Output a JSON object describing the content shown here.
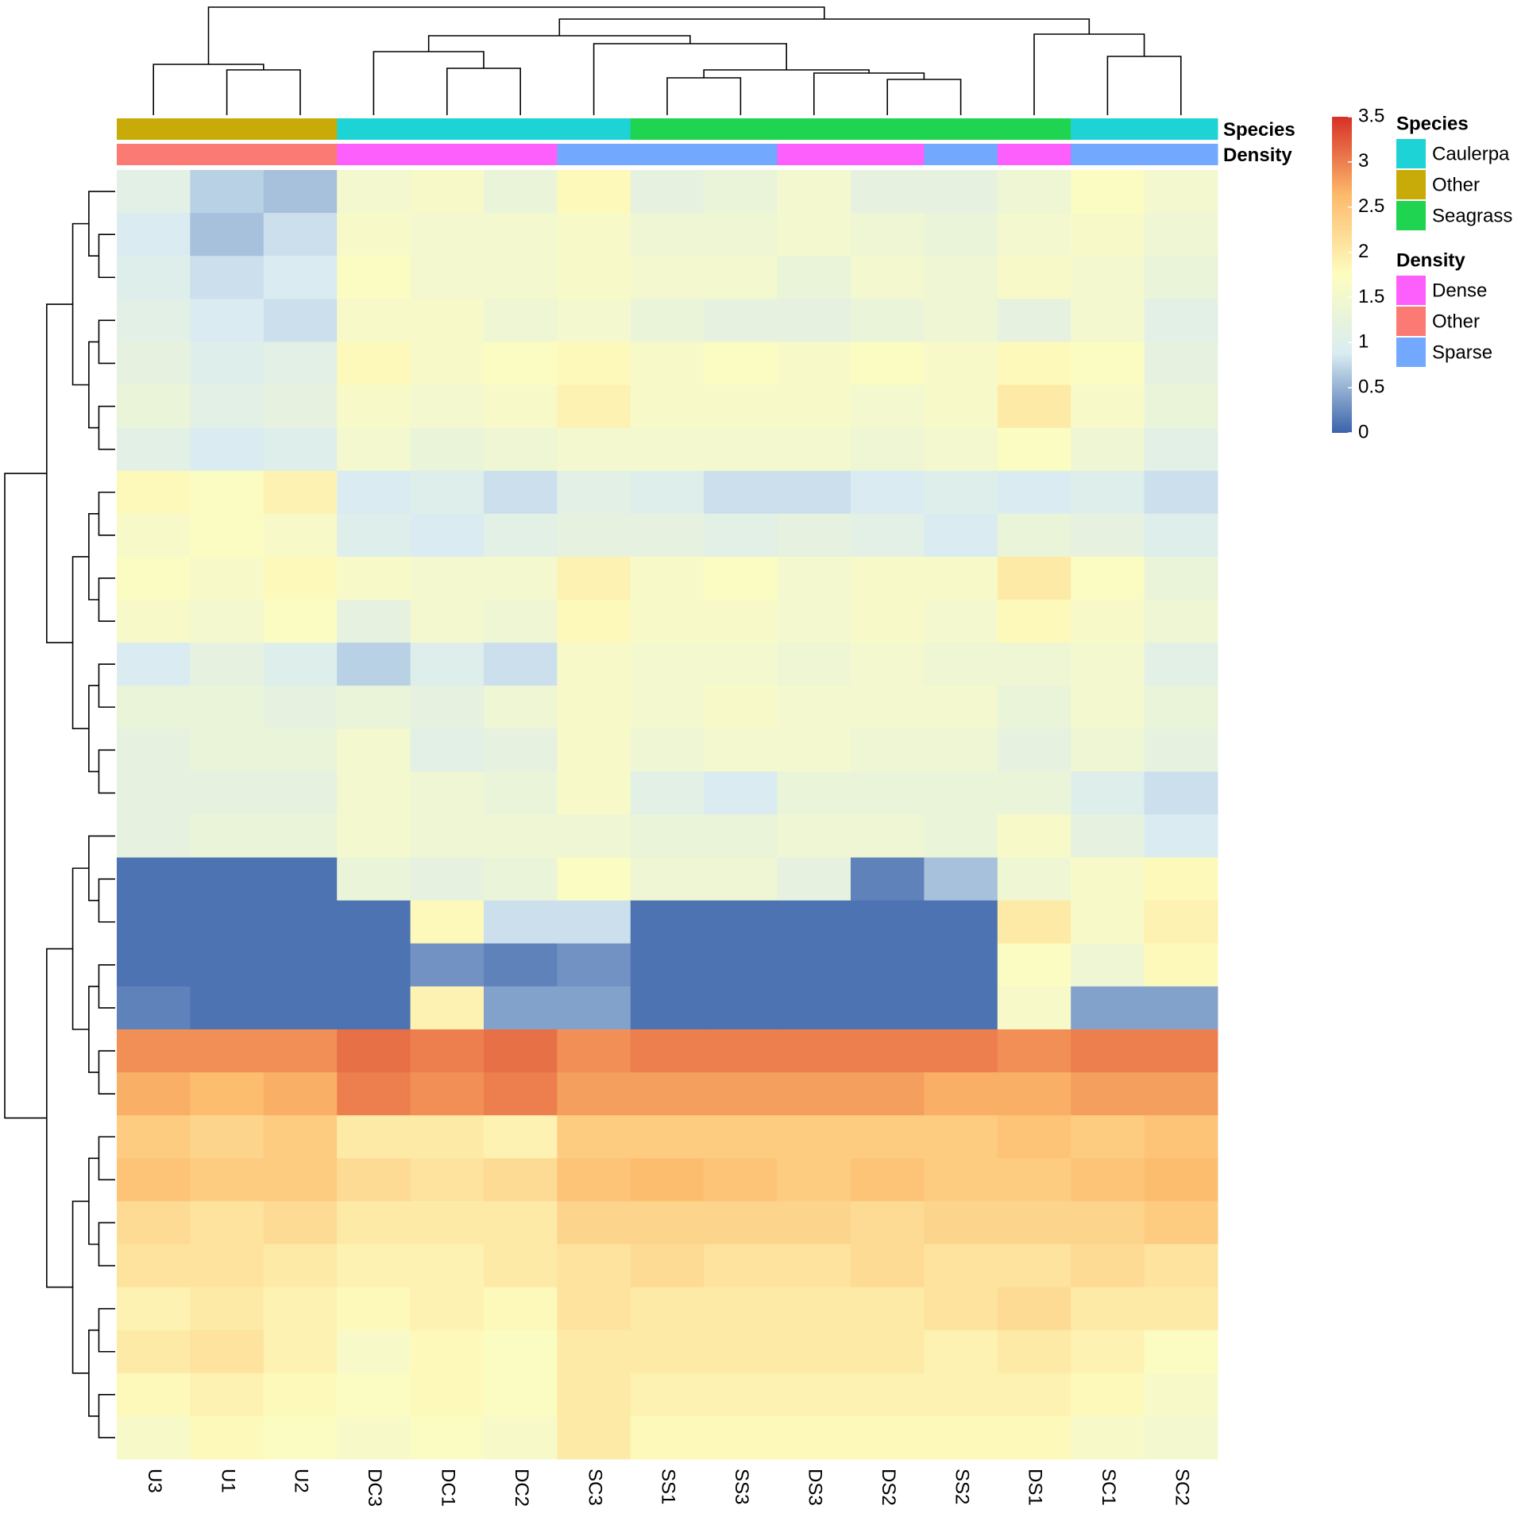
{
  "chart_data": {
    "type": "heatmap",
    "columns": [
      "U3",
      "U1",
      "U2",
      "DC3",
      "DC1",
      "DC2",
      "SC3",
      "SS1",
      "SS3",
      "DS3",
      "DS2",
      "SS2",
      "DS1",
      "SC1",
      "SC2"
    ],
    "annotation_tracks": [
      {
        "name": "Species",
        "values": [
          "Other",
          "Other",
          "Other",
          "Caulerpa",
          "Caulerpa",
          "Caulerpa",
          "Caulerpa",
          "Seagrass",
          "Seagrass",
          "Seagrass",
          "Seagrass",
          "Seagrass",
          "Seagrass",
          "Caulerpa",
          "Caulerpa"
        ],
        "levels": [
          {
            "name": "Caulerpa",
            "color": "#1ed3d6"
          },
          {
            "name": "Other",
            "color": "#c8ab09"
          },
          {
            "name": "Seagrass",
            "color": "#1ed450"
          }
        ]
      },
      {
        "name": "Density",
        "values": [
          "Other",
          "Other",
          "Other",
          "Dense",
          "Dense",
          "Dense",
          "Sparse",
          "Sparse",
          "Sparse",
          "Dense",
          "Dense",
          "Sparse",
          "Dense",
          "Sparse",
          "Sparse"
        ],
        "levels": [
          {
            "name": "Dense",
            "color": "#fd5ffd"
          },
          {
            "name": "Other",
            "color": "#fb7b74"
          },
          {
            "name": "Sparse",
            "color": "#72a8fd"
          }
        ]
      }
    ],
    "zlim": [
      0,
      3.5
    ],
    "zticks": [
      0,
      0.5,
      1,
      1.5,
      2,
      2.5,
      3,
      3.5
    ],
    "colors": [
      "#3b63ab",
      "#d9ecf2",
      "#fdfdbf",
      "#fdbb6c",
      "#d73027"
    ],
    "values": [
      [
        1.1,
        0.7,
        0.6,
        1.5,
        1.6,
        1.3,
        1.8,
        1.2,
        1.3,
        1.5,
        1.2,
        1.2,
        1.4,
        1.7,
        1.5
      ],
      [
        0.9,
        0.6,
        0.8,
        1.6,
        1.5,
        1.5,
        1.6,
        1.4,
        1.4,
        1.5,
        1.4,
        1.3,
        1.5,
        1.6,
        1.4
      ],
      [
        1.0,
        0.8,
        0.9,
        1.7,
        1.5,
        1.5,
        1.6,
        1.5,
        1.5,
        1.3,
        1.5,
        1.4,
        1.6,
        1.5,
        1.3
      ],
      [
        1.1,
        0.9,
        0.8,
        1.6,
        1.6,
        1.4,
        1.5,
        1.3,
        1.2,
        1.2,
        1.3,
        1.4,
        1.2,
        1.5,
        1.1
      ],
      [
        1.2,
        1.0,
        1.1,
        1.8,
        1.6,
        1.7,
        1.8,
        1.6,
        1.7,
        1.6,
        1.7,
        1.6,
        1.8,
        1.7,
        1.2
      ],
      [
        1.3,
        1.1,
        1.2,
        1.6,
        1.5,
        1.6,
        1.9,
        1.6,
        1.6,
        1.6,
        1.5,
        1.6,
        2.0,
        1.6,
        1.3
      ],
      [
        1.1,
        0.9,
        1.0,
        1.5,
        1.3,
        1.4,
        1.5,
        1.5,
        1.5,
        1.5,
        1.4,
        1.5,
        1.7,
        1.4,
        1.1
      ],
      [
        1.8,
        1.7,
        1.9,
        0.9,
        1.0,
        0.8,
        1.1,
        1.0,
        0.8,
        0.8,
        0.9,
        1.0,
        0.9,
        1.0,
        0.8
      ],
      [
        1.6,
        1.7,
        1.6,
        1.0,
        0.9,
        1.1,
        1.2,
        1.2,
        1.1,
        1.2,
        1.1,
        0.9,
        1.3,
        1.2,
        1.0
      ],
      [
        1.7,
        1.6,
        1.8,
        1.6,
        1.5,
        1.5,
        1.9,
        1.6,
        1.7,
        1.5,
        1.6,
        1.6,
        2.0,
        1.7,
        1.3
      ],
      [
        1.6,
        1.5,
        1.7,
        1.2,
        1.5,
        1.4,
        1.8,
        1.6,
        1.6,
        1.5,
        1.6,
        1.5,
        1.8,
        1.6,
        1.4
      ],
      [
        0.9,
        1.2,
        1.0,
        0.7,
        1.0,
        0.8,
        1.6,
        1.5,
        1.5,
        1.4,
        1.5,
        1.4,
        1.4,
        1.5,
        1.1
      ],
      [
        1.3,
        1.3,
        1.2,
        1.3,
        1.2,
        1.4,
        1.6,
        1.5,
        1.6,
        1.5,
        1.5,
        1.5,
        1.3,
        1.5,
        1.3
      ],
      [
        1.2,
        1.3,
        1.3,
        1.5,
        1.1,
        1.2,
        1.6,
        1.4,
        1.5,
        1.5,
        1.4,
        1.4,
        1.2,
        1.4,
        1.2
      ],
      [
        1.2,
        1.2,
        1.2,
        1.5,
        1.4,
        1.3,
        1.6,
        1.1,
        0.9,
        1.3,
        1.3,
        1.3,
        1.3,
        1.0,
        0.8
      ],
      [
        1.2,
        1.3,
        1.3,
        1.5,
        1.4,
        1.4,
        1.4,
        1.3,
        1.3,
        1.4,
        1.4,
        1.3,
        1.6,
        1.2,
        0.9
      ],
      [
        0.1,
        0.1,
        0.1,
        1.3,
        1.2,
        1.3,
        1.7,
        1.4,
        1.4,
        1.2,
        0.2,
        0.6,
        1.4,
        1.6,
        1.8
      ],
      [
        0.1,
        0.1,
        0.1,
        0.1,
        1.8,
        0.8,
        0.8,
        0.1,
        0.1,
        0.1,
        0.1,
        0.1,
        2.0,
        1.6,
        1.9
      ],
      [
        0.1,
        0.1,
        0.1,
        0.1,
        0.3,
        0.2,
        0.3,
        0.1,
        0.1,
        0.1,
        0.1,
        0.1,
        1.7,
        1.4,
        1.8
      ],
      [
        0.2,
        0.1,
        0.1,
        0.1,
        1.9,
        0.4,
        0.4,
        0.1,
        0.1,
        0.1,
        0.1,
        0.1,
        1.6,
        0.4,
        0.4
      ],
      [
        2.9,
        2.9,
        2.9,
        3.1,
        3.0,
        3.1,
        2.9,
        3.0,
        3.0,
        3.0,
        3.0,
        3.0,
        2.9,
        3.0,
        3.0
      ],
      [
        2.7,
        2.6,
        2.7,
        3.0,
        2.9,
        3.0,
        2.8,
        2.8,
        2.8,
        2.8,
        2.8,
        2.7,
        2.7,
        2.8,
        2.8
      ],
      [
        2.4,
        2.3,
        2.4,
        2.0,
        2.0,
        1.9,
        2.4,
        2.4,
        2.4,
        2.4,
        2.4,
        2.4,
        2.5,
        2.4,
        2.5
      ],
      [
        2.5,
        2.4,
        2.4,
        2.2,
        2.1,
        2.2,
        2.5,
        2.6,
        2.5,
        2.4,
        2.5,
        2.4,
        2.4,
        2.5,
        2.6
      ],
      [
        2.2,
        2.1,
        2.2,
        2.0,
        2.0,
        2.0,
        2.3,
        2.3,
        2.3,
        2.3,
        2.2,
        2.3,
        2.3,
        2.3,
        2.4
      ],
      [
        2.1,
        2.1,
        2.0,
        1.9,
        1.9,
        2.0,
        2.1,
        2.2,
        2.1,
        2.1,
        2.2,
        2.1,
        2.1,
        2.2,
        2.1
      ],
      [
        1.9,
        2.0,
        1.9,
        1.8,
        1.9,
        1.8,
        2.1,
        2.0,
        2.0,
        2.0,
        2.0,
        2.1,
        2.2,
        2.0,
        2.0
      ],
      [
        2.0,
        2.1,
        1.9,
        1.6,
        1.8,
        1.7,
        2.0,
        2.0,
        2.0,
        2.0,
        2.0,
        1.9,
        2.0,
        1.9,
        1.7
      ],
      [
        1.8,
        1.9,
        1.8,
        1.7,
        1.8,
        1.7,
        2.0,
        1.9,
        1.9,
        1.9,
        1.9,
        1.9,
        1.9,
        1.8,
        1.6
      ],
      [
        1.6,
        1.8,
        1.7,
        1.6,
        1.7,
        1.6,
        2.0,
        1.8,
        1.8,
        1.8,
        1.8,
        1.8,
        1.8,
        1.6,
        1.5
      ]
    ]
  }
}
